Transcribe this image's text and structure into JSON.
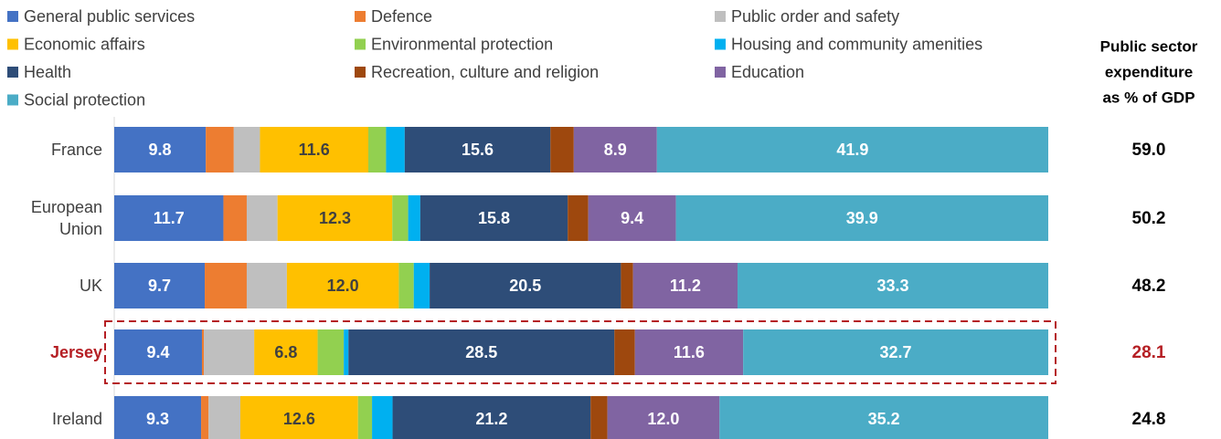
{
  "chart_data": {
    "type": "stacked_bar_horizontal",
    "categories": [
      "France",
      "European Union",
      "UK",
      "Jersey",
      "Ireland"
    ],
    "highlight": "Jersey",
    "highlight_color": "#b51f24",
    "series": [
      {
        "name": "General public services",
        "color": "#4472c4",
        "label_color": "#ffffff",
        "values": [
          9.8,
          11.7,
          9.7,
          9.4,
          9.3
        ],
        "value_labels": [
          "9.8",
          "11.7",
          "9.7",
          "9.4",
          "9.3"
        ]
      },
      {
        "name": "Defence",
        "color": "#ed7d31",
        "values": [
          3.0,
          2.5,
          4.5,
          0.2,
          0.8
        ]
      },
      {
        "name": "Public order and safety",
        "color": "#bfbfbf",
        "values": [
          2.8,
          3.3,
          4.3,
          5.4,
          3.4
        ]
      },
      {
        "name": "Economic affairs",
        "color": "#ffc000",
        "label_color": "#404040",
        "values": [
          11.6,
          12.3,
          12.0,
          6.8,
          12.6
        ],
        "value_labels": [
          "11.6",
          "12.3",
          "12.0",
          "6.8",
          "12.6"
        ]
      },
      {
        "name": "Environmental protection",
        "color": "#92d050",
        "values": [
          1.9,
          1.7,
          1.6,
          2.8,
          1.5
        ]
      },
      {
        "name": "Housing and community amenities",
        "color": "#00b0f0",
        "values": [
          2.0,
          1.3,
          1.7,
          0.5,
          2.2
        ]
      },
      {
        "name": "Health",
        "color": "#2e4d78",
        "label_color": "#ffffff",
        "values": [
          15.6,
          15.8,
          20.5,
          28.5,
          21.2
        ],
        "value_labels": [
          "15.6",
          "15.8",
          "20.5",
          "28.5",
          "21.2"
        ]
      },
      {
        "name": "Recreation, culture and religion",
        "color": "#9e480e",
        "values": [
          2.5,
          2.2,
          1.3,
          2.2,
          1.8
        ]
      },
      {
        "name": "Education",
        "color": "#8064a2",
        "label_color": "#ffffff",
        "values": [
          8.9,
          9.4,
          11.2,
          11.6,
          12.0
        ],
        "value_labels": [
          "8.9",
          "9.4",
          "11.2",
          "11.6",
          "12.0"
        ]
      },
      {
        "name": "Social protection",
        "color": "#4bacc6",
        "label_color": "#ffffff",
        "values": [
          41.9,
          39.9,
          33.3,
          32.7,
          35.2
        ],
        "value_labels": [
          "41.9",
          "39.9",
          "33.3",
          "32.7",
          "35.2"
        ]
      }
    ],
    "gdp_share": {
      "title_lines": [
        "Public sector",
        "expenditure",
        "as % of GDP"
      ],
      "values": [
        59.0,
        50.2,
        48.2,
        28.1,
        24.8
      ],
      "value_labels": [
        "59.0",
        "50.2",
        "48.2",
        "28.1",
        "24.8"
      ]
    }
  }
}
